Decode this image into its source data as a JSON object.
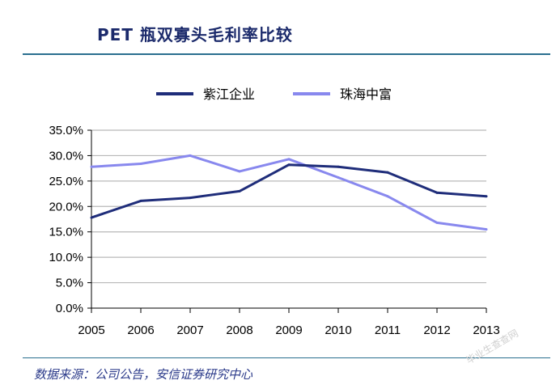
{
  "title": "PET 瓶双寡头毛利率比较",
  "source": "数据来源：公司公告，安信证券研究中心",
  "watermark": "毕业生查查网",
  "chart_data": {
    "type": "line",
    "x": [
      "2005",
      "2006",
      "2007",
      "2008",
      "2009",
      "2010",
      "2011",
      "2012",
      "2013"
    ],
    "ylim": [
      0,
      35
    ],
    "yticks": [
      "0.0%",
      "5.0%",
      "10.0%",
      "15.0%",
      "20.0%",
      "25.0%",
      "30.0%",
      "35.0%"
    ],
    "grid": true,
    "legend": "top",
    "series": [
      {
        "name": "紫江企业",
        "color": "#1f2d7a",
        "values": [
          17.8,
          21.1,
          21.7,
          23.0,
          28.2,
          27.8,
          26.7,
          22.7,
          22.0
        ]
      },
      {
        "name": "珠海中富",
        "color": "#8888ee",
        "values": [
          27.8,
          28.4,
          30.0,
          26.9,
          29.3,
          25.7,
          22.0,
          16.8,
          15.5
        ]
      }
    ]
  }
}
